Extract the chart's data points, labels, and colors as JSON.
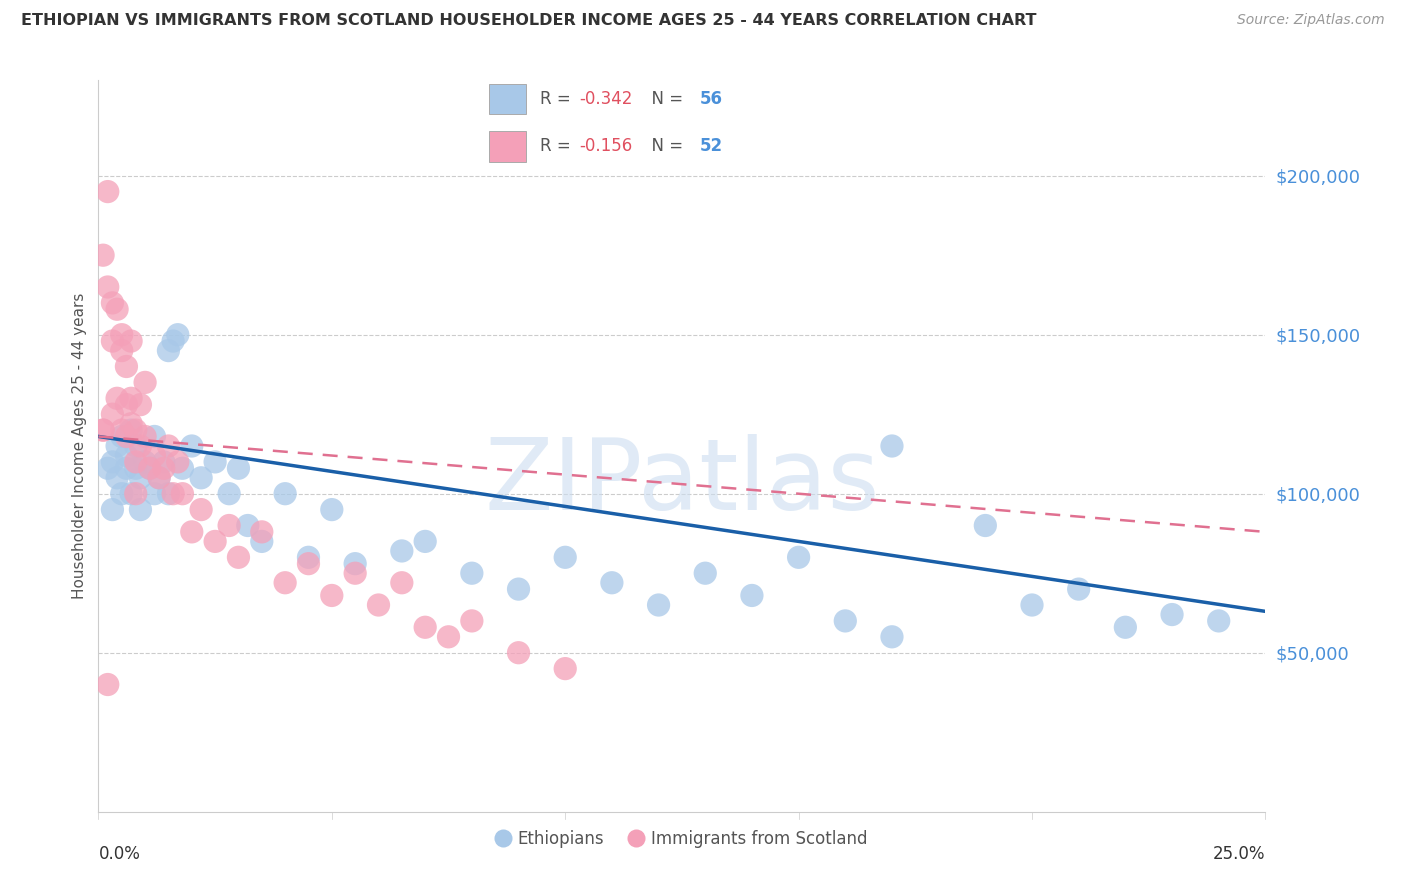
{
  "title": "ETHIOPIAN VS IMMIGRANTS FROM SCOTLAND HOUSEHOLDER INCOME AGES 25 - 44 YEARS CORRELATION CHART",
  "source": "Source: ZipAtlas.com",
  "ylabel": "Householder Income Ages 25 - 44 years",
  "ytick_values": [
    50000,
    100000,
    150000,
    200000
  ],
  "ylim": [
    0,
    230000
  ],
  "xlim": [
    0.0,
    0.25
  ],
  "blue_color": "#a8c8e8",
  "pink_color": "#f4a0b8",
  "trendline_blue_color": "#1a5fa8",
  "trendline_pink_color": "#e07090",
  "watermark": "ZIPatlas",
  "blue_line_x0": 0.0,
  "blue_line_y0": 118000,
  "blue_line_x1": 0.25,
  "blue_line_y1": 63000,
  "pink_line_x0": 0.0,
  "pink_line_y0": 118000,
  "pink_line_x1": 0.25,
  "pink_line_y1": 88000,
  "blue_points_x": [
    0.002,
    0.003,
    0.003,
    0.004,
    0.004,
    0.005,
    0.005,
    0.006,
    0.006,
    0.007,
    0.007,
    0.008,
    0.008,
    0.009,
    0.009,
    0.01,
    0.011,
    0.012,
    0.012,
    0.013,
    0.014,
    0.015,
    0.015,
    0.016,
    0.017,
    0.018,
    0.02,
    0.022,
    0.025,
    0.028,
    0.03,
    0.032,
    0.035,
    0.04,
    0.045,
    0.05,
    0.055,
    0.065,
    0.07,
    0.08,
    0.09,
    0.1,
    0.11,
    0.12,
    0.13,
    0.14,
    0.15,
    0.16,
    0.17,
    0.2,
    0.21,
    0.23,
    0.24,
    0.17,
    0.19,
    0.22
  ],
  "blue_points_y": [
    108000,
    110000,
    95000,
    105000,
    115000,
    100000,
    118000,
    108000,
    112000,
    120000,
    100000,
    108000,
    115000,
    95000,
    105000,
    110000,
    108000,
    100000,
    118000,
    105000,
    110000,
    100000,
    145000,
    148000,
    150000,
    108000,
    115000,
    105000,
    110000,
    100000,
    108000,
    90000,
    85000,
    100000,
    80000,
    95000,
    78000,
    82000,
    85000,
    75000,
    70000,
    80000,
    72000,
    65000,
    75000,
    68000,
    80000,
    60000,
    55000,
    65000,
    70000,
    62000,
    60000,
    115000,
    90000,
    58000
  ],
  "pink_points_x": [
    0.001,
    0.001,
    0.002,
    0.002,
    0.003,
    0.003,
    0.003,
    0.004,
    0.004,
    0.005,
    0.005,
    0.005,
    0.006,
    0.006,
    0.006,
    0.007,
    0.007,
    0.007,
    0.008,
    0.008,
    0.008,
    0.009,
    0.009,
    0.01,
    0.01,
    0.011,
    0.012,
    0.013,
    0.014,
    0.015,
    0.016,
    0.017,
    0.018,
    0.02,
    0.022,
    0.025,
    0.028,
    0.03,
    0.035,
    0.04,
    0.045,
    0.05,
    0.055,
    0.06,
    0.065,
    0.07,
    0.075,
    0.08,
    0.09,
    0.1,
    0.001,
    0.002
  ],
  "pink_points_y": [
    120000,
    175000,
    195000,
    165000,
    160000,
    125000,
    148000,
    158000,
    130000,
    145000,
    150000,
    120000,
    140000,
    118000,
    128000,
    130000,
    122000,
    148000,
    120000,
    110000,
    100000,
    128000,
    115000,
    135000,
    118000,
    108000,
    112000,
    105000,
    108000,
    115000,
    100000,
    110000,
    100000,
    88000,
    95000,
    85000,
    90000,
    80000,
    88000,
    72000,
    78000,
    68000,
    75000,
    65000,
    72000,
    58000,
    55000,
    60000,
    50000,
    45000,
    120000,
    40000
  ]
}
